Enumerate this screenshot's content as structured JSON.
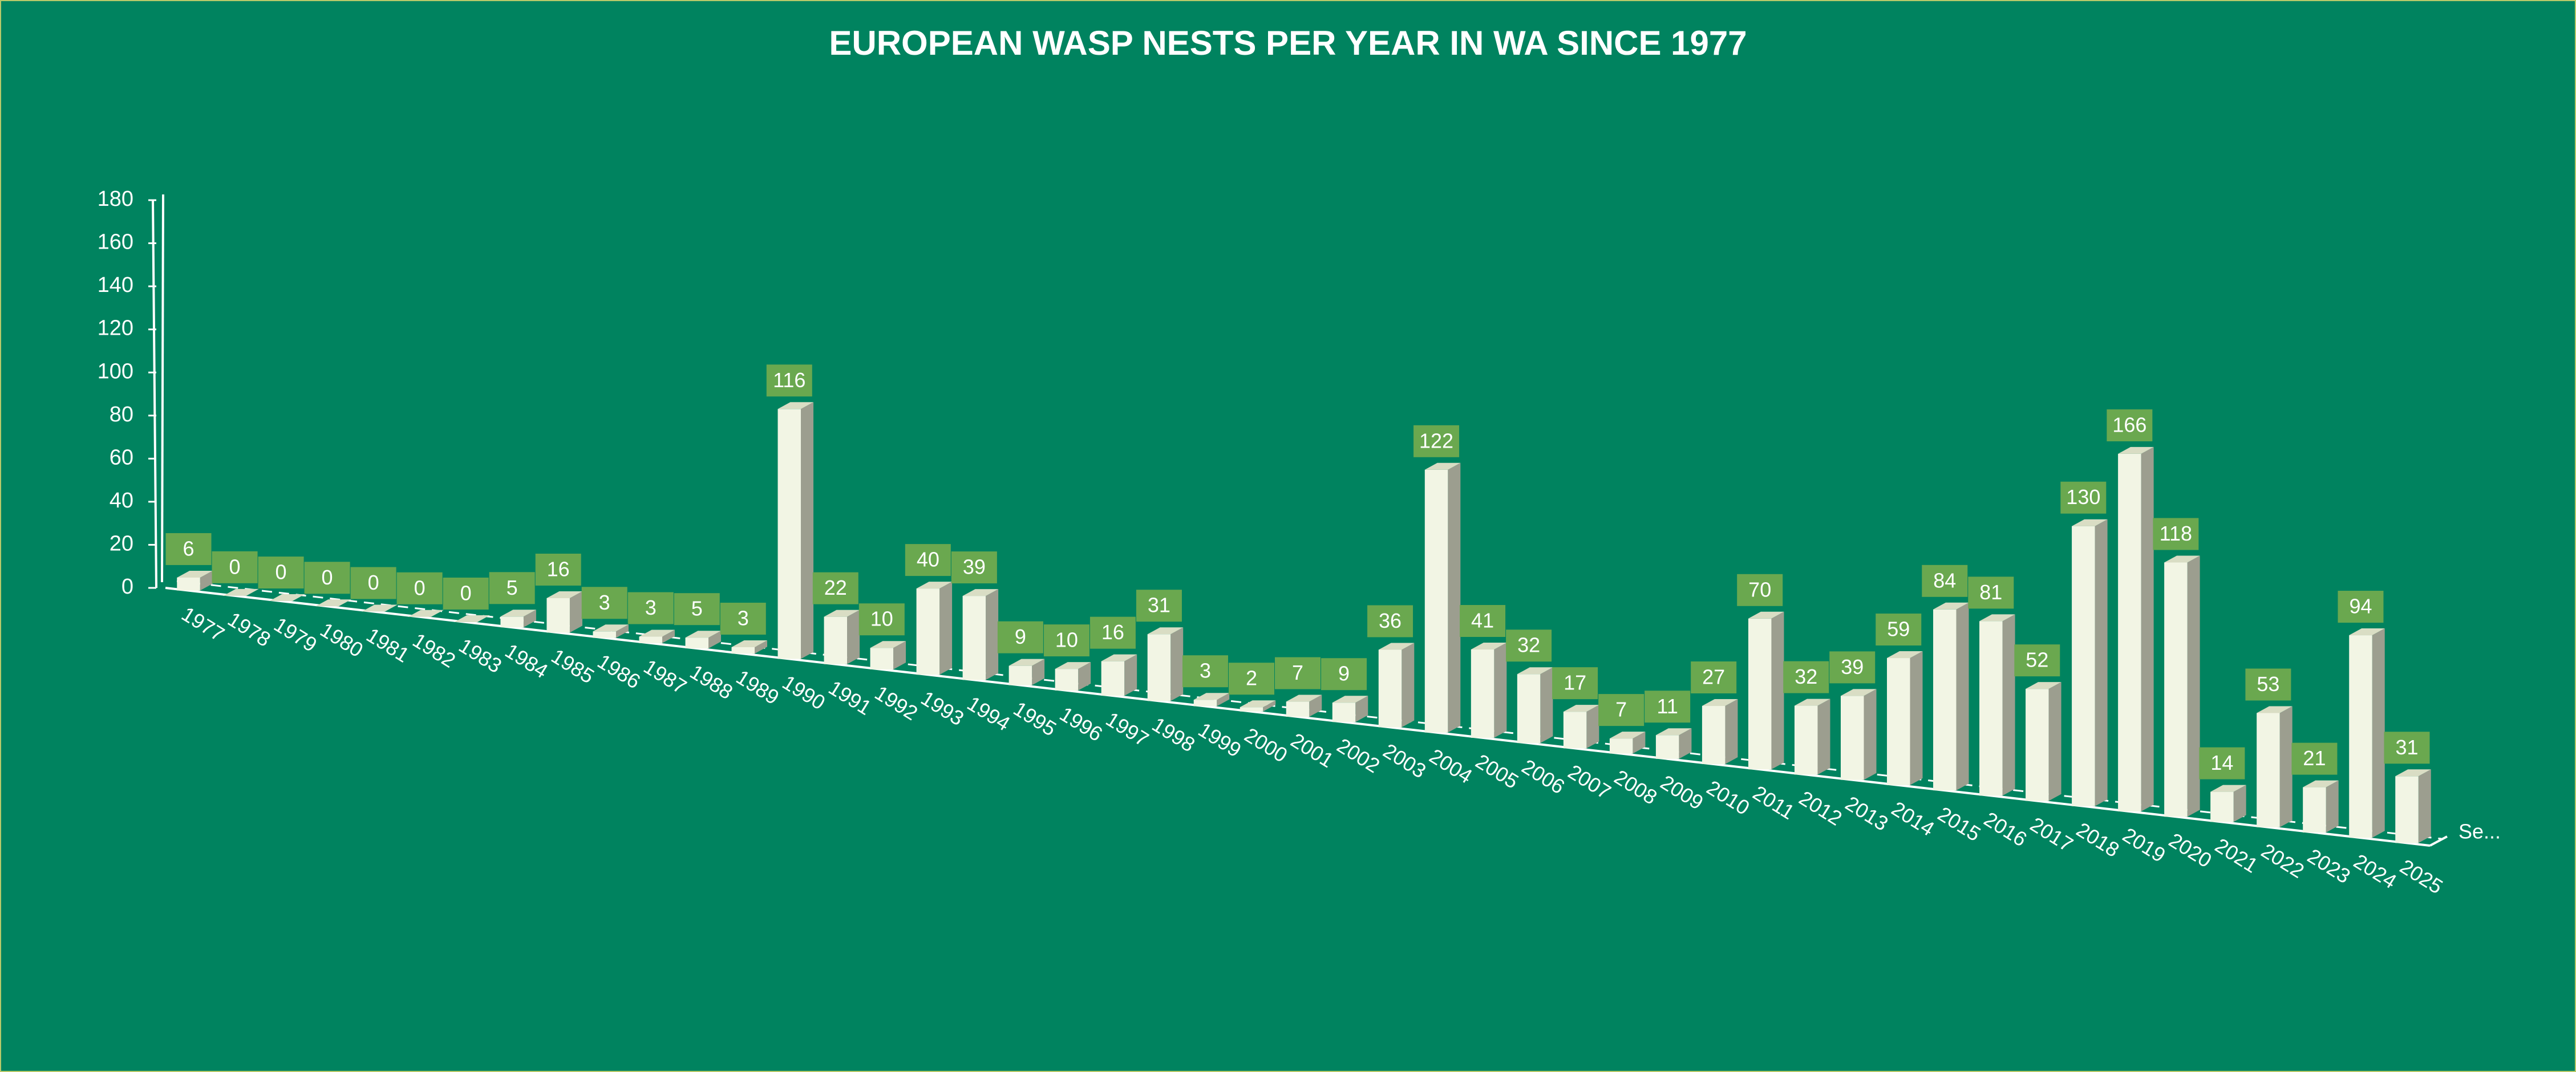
{
  "chart_data": {
    "type": "bar",
    "title": "EUROPEAN WASP NESTS PER YEAR IN WA SINCE 1977",
    "categories": [
      "1977",
      "1978",
      "1979",
      "1980",
      "1981",
      "1982",
      "1983",
      "1984",
      "1985",
      "1986",
      "1987",
      "1988",
      "1989",
      "1990",
      "1991",
      "1992",
      "1993",
      "1994",
      "1995",
      "1996",
      "1997",
      "1998",
      "1999",
      "2000",
      "2001",
      "2002",
      "2003",
      "2004",
      "2005",
      "2006",
      "2007",
      "2008",
      "2009",
      "2010",
      "2011",
      "2012",
      "2013",
      "2014",
      "2015",
      "2016",
      "2017",
      "2018",
      "2019",
      "2020",
      "2021",
      "2022",
      "2023",
      "2024",
      "2025"
    ],
    "series": [
      {
        "name": "Se...",
        "color": "#f2f5e4",
        "values": [
          6,
          0,
          0,
          0,
          0,
          0,
          0,
          5,
          16,
          3,
          3,
          5,
          3,
          116,
          22,
          10,
          40,
          39,
          9,
          10,
          16,
          31,
          3,
          2,
          7,
          9,
          36,
          122,
          41,
          32,
          17,
          7,
          11,
          27,
          70,
          32,
          39,
          59,
          84,
          81,
          52,
          130,
          166,
          118,
          14,
          53,
          21,
          94,
          31
        ]
      }
    ],
    "label_color": "#6aa84f",
    "ylim": [
      0,
      180
    ],
    "yticks": [
      0,
      20,
      40,
      60,
      80,
      100,
      120,
      140,
      160,
      180
    ]
  }
}
